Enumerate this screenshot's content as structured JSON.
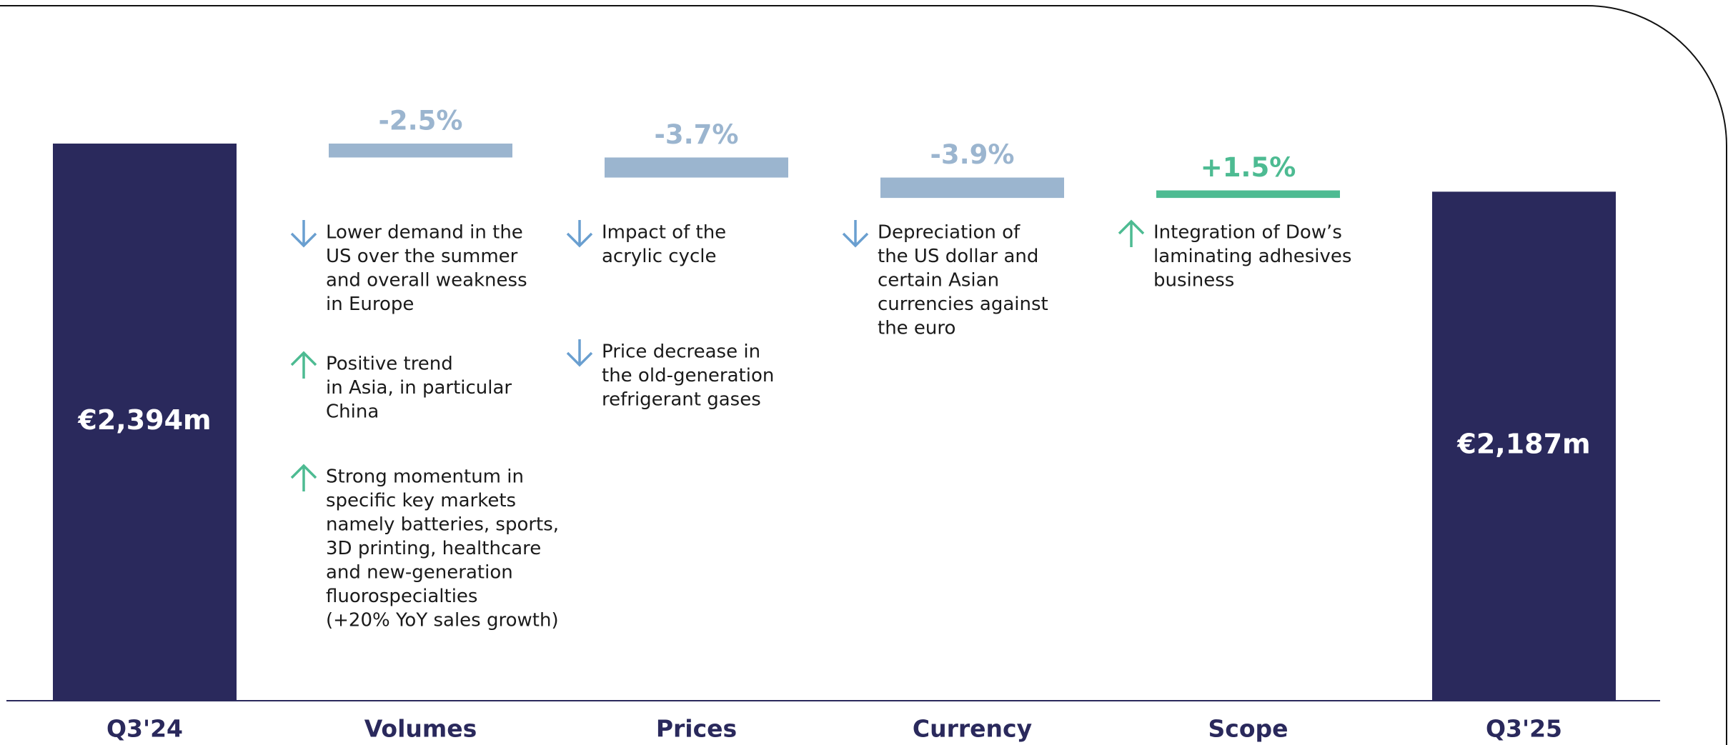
{
  "chart_data": {
    "type": "waterfall",
    "categories": [
      "Q3'24",
      "Volumes",
      "Prices",
      "Currency",
      "Scope",
      "Q3'25"
    ],
    "values": [
      2394,
      -2.5,
      -3.7,
      -3.9,
      1.5,
      2187
    ],
    "value_labels": [
      "€2,394m",
      "-2.5%",
      "-3.7%",
      "-3.9%",
      "+1.5%",
      "€2,187m"
    ],
    "colors": {
      "total": "#2a295c",
      "negative": "#9bb5cf",
      "positive": "#4dbb92",
      "arrow_down": "#6a9fd0",
      "arrow_up": "#4dbb92"
    },
    "notes": [
      null,
      [
        {
          "direction": "down",
          "lines": [
            "Lower demand in the",
            "US over the summer",
            "and overall weakness",
            "in Europe"
          ]
        },
        {
          "direction": "up",
          "lines": [
            "Positive trend",
            "in Asia, in particular",
            "China"
          ]
        },
        {
          "direction": "up",
          "lines": [
            "Strong momentum in",
            "specific key markets",
            "namely batteries, sports,",
            "3D printing, healthcare",
            "and new-generation",
            "fluorospecialties",
            "(+20% YoY sales growth)"
          ]
        }
      ],
      [
        {
          "direction": "down",
          "lines": [
            "Impact of the",
            "acrylic cycle"
          ]
        },
        {
          "direction": "down",
          "lines": [
            "Price decrease in",
            "the old-generation",
            "refrigerant gases"
          ]
        }
      ],
      [
        {
          "direction": "down",
          "lines": [
            "Depreciation of",
            "the US dollar and",
            "certain Asian",
            "currencies against",
            "the euro"
          ]
        }
      ],
      [
        {
          "direction": "up",
          "lines": [
            "Integration of Dow’s",
            "laminating adhesives",
            "business"
          ]
        }
      ],
      null
    ]
  }
}
